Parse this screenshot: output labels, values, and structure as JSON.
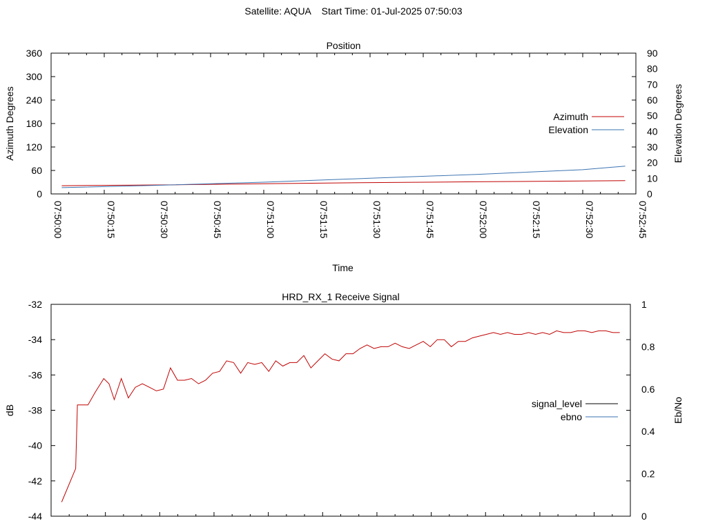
{
  "header": {
    "title": "Satellite: AQUA    Start Time: 01-Jul-2025 07:50:03"
  },
  "chart_data": [
    {
      "type": "line",
      "title": "Position",
      "xlabel": "Time",
      "ylabel": "Azimuth Degrees",
      "y2label": "Elevation Degrees",
      "ylim": [
        0,
        360
      ],
      "y2lim": [
        0,
        90
      ],
      "yticks": [
        "0",
        "60",
        "120",
        "180",
        "240",
        "300",
        "360"
      ],
      "y2ticks": [
        "0",
        "10",
        "20",
        "30",
        "40",
        "50",
        "60",
        "70",
        "80",
        "90"
      ],
      "xticks": [
        "07:50:00",
        "07:50:15",
        "07:50:30",
        "07:50:45",
        "07:51:00",
        "07:51:15",
        "07:51:30",
        "07:51:45",
        "07:52:00",
        "07:52:15",
        "07:52:30",
        "07:52:45"
      ],
      "xlim_seconds": [
        0,
        165
      ],
      "legend": "right",
      "grid": false,
      "series": [
        {
          "name": "Azimuth",
          "axis": "y",
          "color": "#c00000",
          "x": [
            3,
            30,
            60,
            90,
            120,
            150,
            162
          ],
          "values": [
            21,
            23,
            26,
            29,
            31,
            33,
            34
          ]
        },
        {
          "name": "Elevation",
          "axis": "y2",
          "color": "#3a72b0",
          "x": [
            3,
            30,
            60,
            90,
            120,
            150,
            162
          ],
          "values": [
            4,
            5.5,
            7.5,
            10,
            12.5,
            15.5,
            17.8
          ]
        }
      ]
    },
    {
      "type": "line",
      "title": "HRD_RX_1 Receive Signal",
      "xlabel": "",
      "ylabel": "dB",
      "y2label": "Eb/No",
      "ylim": [
        -44,
        -32
      ],
      "y2lim": [
        0,
        1
      ],
      "yticks": [
        "-44",
        "-42",
        "-40",
        "-38",
        "-36",
        "-34",
        "-32"
      ],
      "y2ticks": [
        "0",
        "0.2",
        "0.4",
        "0.6",
        "0.8",
        "1"
      ],
      "xlim_seconds": [
        0,
        165
      ],
      "minor_tick_count": 32,
      "legend": "right",
      "grid": false,
      "series": [
        {
          "name": "signal_level",
          "axis": "y",
          "color": "#000000",
          "x": [],
          "values": []
        },
        {
          "name": "ebno",
          "axis": "y2",
          "color": "#3a72b0",
          "x": [],
          "values": []
        },
        {
          "name": "",
          "axis": "y",
          "color": "#c00000",
          "x": [
            3,
            7,
            7.5,
            10.5,
            12.5,
            15,
            16.5,
            18,
            20,
            22,
            24,
            26,
            28,
            30,
            32,
            34,
            36,
            38,
            40,
            42,
            44,
            46,
            48,
            50,
            52,
            54,
            56,
            58,
            60,
            62,
            64,
            66,
            68,
            70,
            72,
            74,
            76,
            78,
            80,
            82,
            84,
            86,
            88,
            90,
            92,
            94,
            96,
            98,
            100,
            102,
            104,
            106,
            108,
            110,
            112,
            114,
            116,
            118,
            120,
            122,
            124,
            126,
            128,
            130,
            132,
            134,
            136,
            138,
            140,
            142,
            144,
            146,
            148,
            150,
            152,
            154,
            156,
            158,
            160,
            162
          ],
          "values": [
            -43.2,
            -41.3,
            -37.7,
            -37.7,
            -37,
            -36.2,
            -36.5,
            -37.4,
            -36.2,
            -37.3,
            -36.7,
            -36.5,
            -36.7,
            -36.9,
            -36.8,
            -35.6,
            -36.3,
            -36.3,
            -36.2,
            -36.5,
            -36.3,
            -35.9,
            -35.8,
            -35.2,
            -35.3,
            -35.9,
            -35.3,
            -35.4,
            -35.3,
            -35.8,
            -35.2,
            -35.5,
            -35.3,
            -35.3,
            -34.9,
            -35.6,
            -35.2,
            -34.8,
            -35.1,
            -35.2,
            -34.8,
            -34.8,
            -34.5,
            -34.3,
            -34.5,
            -34.4,
            -34.4,
            -34.2,
            -34.4,
            -34.5,
            -34.3,
            -34.1,
            -34.4,
            -34,
            -34,
            -34.4,
            -34.1,
            -34.1,
            -33.9,
            -33.8,
            -33.7,
            -33.6,
            -33.7,
            -33.6,
            -33.7,
            -33.7,
            -33.6,
            -33.7,
            -33.6,
            -33.7,
            -33.5,
            -33.6,
            -33.6,
            -33.5,
            -33.5,
            -33.6,
            -33.5,
            -33.5,
            -33.6,
            -33.6
          ]
        }
      ]
    }
  ]
}
